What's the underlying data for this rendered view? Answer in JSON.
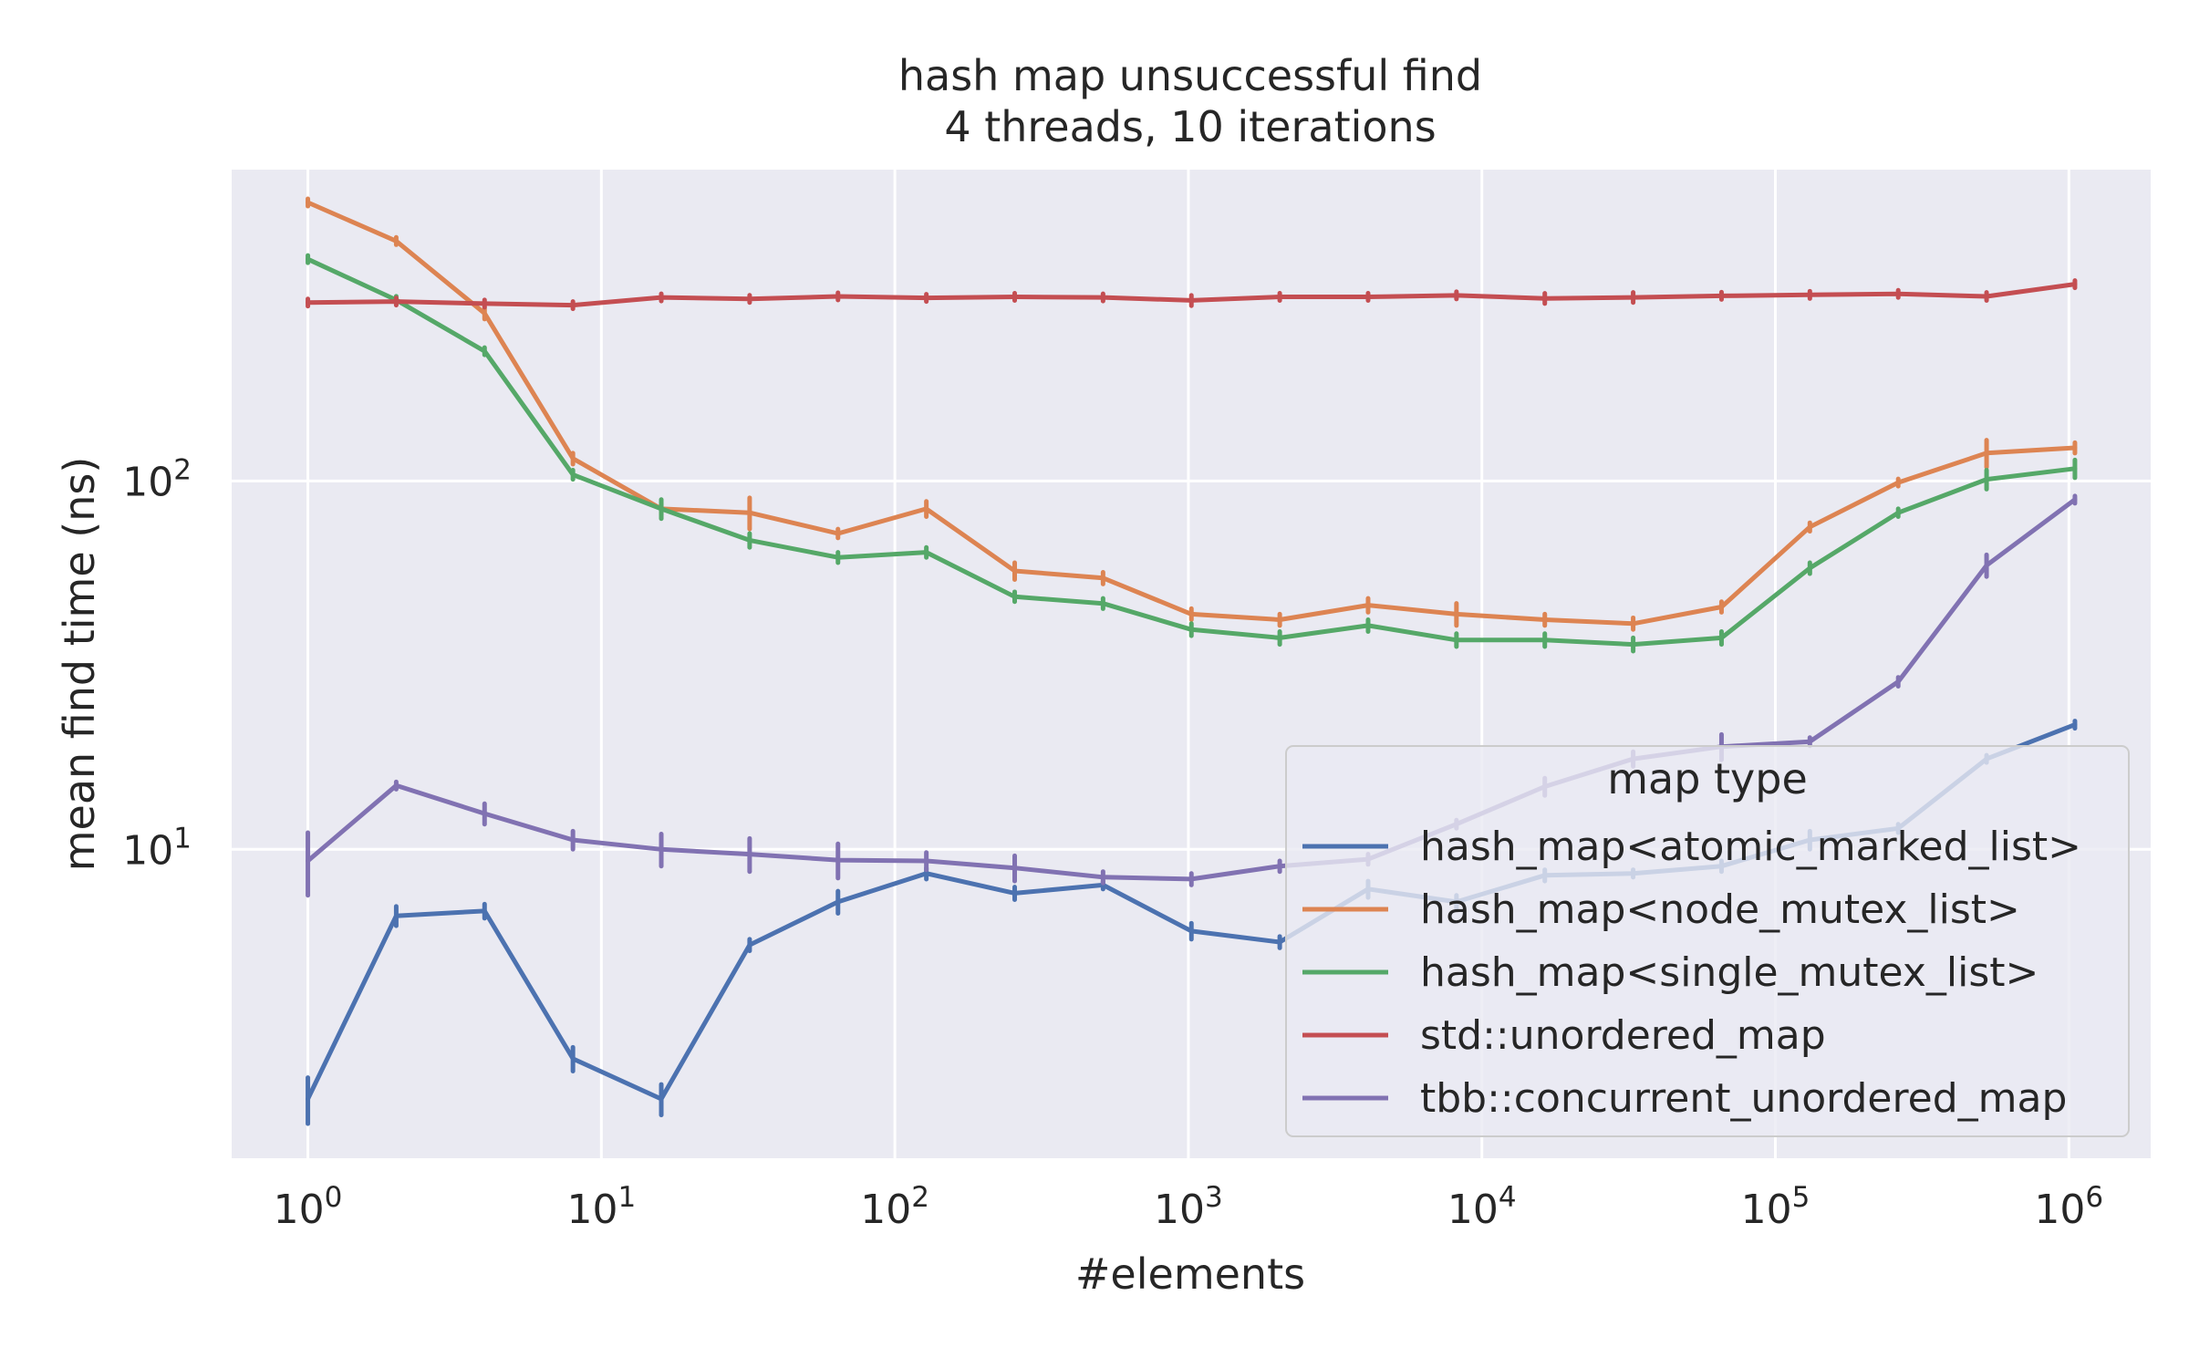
{
  "chart_data": {
    "type": "line",
    "title": "hash map unsuccessful find",
    "subtitle": "4 threads, 10 iterations",
    "xlabel": "#elements",
    "ylabel": "mean find time (ns)",
    "xscale": "log",
    "yscale": "log",
    "xlim": [
      0.55,
      1900000
    ],
    "ylim": [
      1.45,
      700
    ],
    "x_tick_labels": [
      {
        "base": "10",
        "exp": "0"
      },
      {
        "base": "10",
        "exp": "1"
      },
      {
        "base": "10",
        "exp": "2"
      },
      {
        "base": "10",
        "exp": "3"
      },
      {
        "base": "10",
        "exp": "4"
      },
      {
        "base": "10",
        "exp": "5"
      },
      {
        "base": "10",
        "exp": "6"
      }
    ],
    "y_tick_labels": [
      {
        "base": "10",
        "exp": "1"
      },
      {
        "base": "10",
        "exp": "2"
      }
    ],
    "grid": true,
    "background": "#eaeaf2",
    "legend": {
      "title": "map type",
      "position": "lower-right"
    },
    "x": [
      1,
      2,
      4,
      8,
      16,
      32,
      64,
      128,
      256,
      512,
      1024,
      2048,
      4096,
      8192,
      16384,
      32768,
      65536,
      131072,
      262144,
      524288,
      1048576
    ],
    "series": [
      {
        "name": "hash_map<atomic_marked_list>",
        "color": "#4c72b0",
        "values": [
          2.1,
          6.6,
          6.8,
          2.7,
          2.1,
          5.5,
          7.2,
          8.6,
          7.6,
          8.0,
          6.0,
          5.6,
          7.8,
          7.2,
          8.5,
          8.6,
          9.0,
          10.6,
          11.4,
          17.6,
          21.8
        ],
        "errors": [
          0.3,
          0.4,
          0.3,
          0.2,
          0.2,
          0.2,
          0.5,
          0.3,
          0.3,
          0.2,
          0.3,
          0.2,
          0.4,
          0.3,
          0.3,
          0.2,
          0.3,
          0.6,
          0.3,
          0.3,
          0.3
        ]
      },
      {
        "name": "hash_map<node_mutex_list>",
        "color": "#dd8452",
        "values": [
          570,
          448,
          285,
          115,
          84,
          82,
          72,
          84,
          57,
          54.5,
          43.5,
          42,
          46,
          43.5,
          42,
          41,
          45.5,
          75,
          99,
          119,
          123
        ],
        "errors": [
          5,
          5,
          10,
          4,
          3,
          8,
          2,
          4,
          3,
          2,
          1.5,
          1.5,
          2,
          3,
          1.5,
          1.5,
          1.5,
          2,
          2,
          10,
          4
        ]
      },
      {
        "name": "hash_map<single_mutex_list>",
        "color": "#55a868",
        "values": [
          400,
          310,
          225,
          104,
          84,
          69,
          62,
          64,
          48.5,
          46.5,
          39.5,
          37.5,
          40.5,
          37,
          37,
          36,
          37.5,
          58,
          82,
          101,
          108
        ],
        "errors": [
          4,
          4,
          4,
          3,
          5,
          3,
          2,
          2,
          1.5,
          1.5,
          1.5,
          1.5,
          1.5,
          1.5,
          1.5,
          1.5,
          1.5,
          2,
          2,
          6,
          6
        ]
      },
      {
        "name": "std::unordered_map",
        "color": "#c44e52",
        "values": [
          305,
          307,
          303,
          300,
          315,
          312,
          317,
          314,
          316,
          315,
          309,
          316,
          316,
          319,
          313,
          315,
          318,
          320,
          322,
          317,
          342
        ],
        "errors": [
          3,
          6,
          5,
          5,
          3,
          5,
          3,
          3,
          3,
          3,
          10,
          3,
          3,
          3,
          10,
          10,
          3,
          3,
          3,
          8,
          3
        ]
      },
      {
        "name": "tbb::concurrent_unordered_map",
        "color": "#8172b2",
        "values": [
          9.3,
          14.9,
          12.5,
          10.6,
          10.0,
          9.7,
          9.35,
          9.3,
          8.9,
          8.4,
          8.3,
          9.0,
          9.4,
          11.7,
          14.8,
          17.6,
          19.0,
          19.6,
          28.5,
          59.0,
          89.0
        ],
        "errors": [
          1.8,
          0.3,
          0.8,
          0.6,
          1.0,
          1.0,
          1.0,
          0.5,
          0.7,
          0.3,
          0.3,
          0.3,
          0.3,
          0.3,
          0.8,
          0.8,
          1.5,
          0.5,
          0.8,
          4,
          2
        ]
      }
    ]
  }
}
